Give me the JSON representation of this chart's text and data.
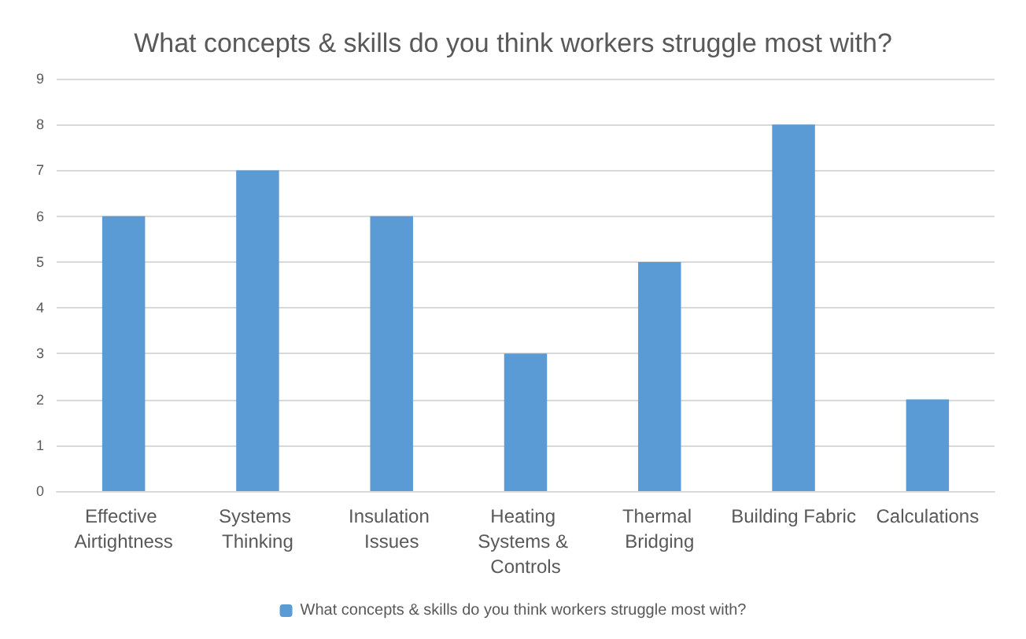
{
  "chart_data": {
    "type": "bar",
    "title": "What concepts & skills do you think workers struggle most with?",
    "categories": [
      "Effective Airtightness",
      "Systems Thinking",
      "Insulation Issues",
      "Heating Systems & Controls",
      "Thermal Bridging",
      "Building Fabric",
      "Calculations"
    ],
    "series": [
      {
        "name": "What concepts & skills do you think workers struggle most with?",
        "color": "#5b9bd5",
        "values": [
          6,
          7,
          6,
          3,
          5,
          8,
          2
        ]
      }
    ],
    "ylim": [
      0,
      9
    ],
    "yticks": [
      0,
      1,
      2,
      3,
      4,
      5,
      6,
      7,
      8,
      9
    ],
    "grid": "y",
    "legend": "bottom"
  }
}
